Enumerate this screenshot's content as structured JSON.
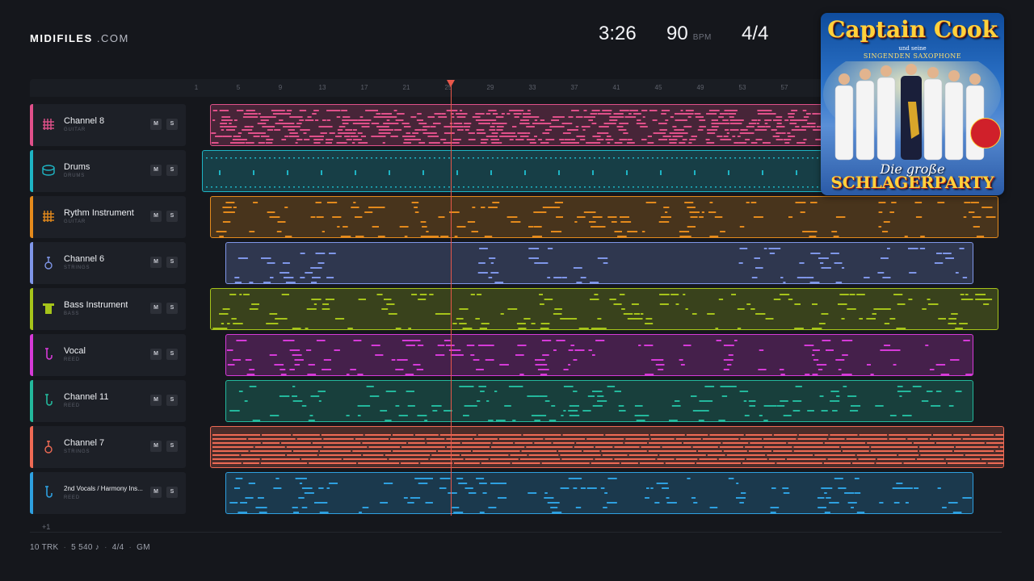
{
  "brand": {
    "name": "MIDIFILES",
    "suffix": ".COM"
  },
  "stats": {
    "duration": "3:26",
    "tempo": "90",
    "tempo_unit": "BPM",
    "time_signature": "4/4"
  },
  "ruler": {
    "ticks": [
      "1",
      "5",
      "9",
      "13",
      "17",
      "21",
      "25",
      "29",
      "33",
      "37",
      "41",
      "45",
      "49",
      "53",
      "57"
    ]
  },
  "tracks": [
    {
      "name": "Channel 8",
      "type": "GUITAR",
      "color": "#e0508a",
      "icon": "guitar-grid-icon",
      "mute": "M",
      "solo": "S"
    },
    {
      "name": "Drums",
      "type": "DRUMS",
      "color": "#1eb4c4",
      "icon": "drum-icon",
      "mute": "M",
      "solo": "S"
    },
    {
      "name": "Rythm Instrument",
      "type": "GUITAR",
      "color": "#e48a1c",
      "icon": "guitar-grid-icon",
      "mute": "M",
      "solo": "S"
    },
    {
      "name": "Channel 6",
      "type": "STRINGS",
      "color": "#7f96e8",
      "icon": "violin-icon",
      "mute": "M",
      "solo": "S"
    },
    {
      "name": "Bass Instrument",
      "type": "BASS",
      "color": "#a6c41a",
      "icon": "bass-icon",
      "mute": "M",
      "solo": "S"
    },
    {
      "name": "Vocal",
      "type": "REED",
      "color": "#d63ad8",
      "icon": "saxophone-icon",
      "mute": "M",
      "solo": "S"
    },
    {
      "name": "Channel 11",
      "type": "REED",
      "color": "#23b89c",
      "icon": "saxophone-icon",
      "mute": "M",
      "solo": "S"
    },
    {
      "name": "Channel 7",
      "type": "STRINGS",
      "color": "#ee6a54",
      "icon": "violin-icon",
      "mute": "M",
      "solo": "S"
    },
    {
      "name": "2nd Vocals / Harmony Ins...",
      "type": "REED",
      "color": "#2ea0e0",
      "icon": "saxophone-icon",
      "mute": "M",
      "solo": "S"
    }
  ],
  "more_tracks": "+1",
  "footer": {
    "tracks": "10 TRK",
    "notes": "5 540 ♪",
    "time_signature": "4/4",
    "standard": "GM"
  },
  "album": {
    "artist": "Captain Cook",
    "line1": "und seine",
    "line2": "SINGENDEN SAXOPHONE",
    "title_line1": "Die große",
    "title_line2": "SCHLAGERPARTY"
  }
}
